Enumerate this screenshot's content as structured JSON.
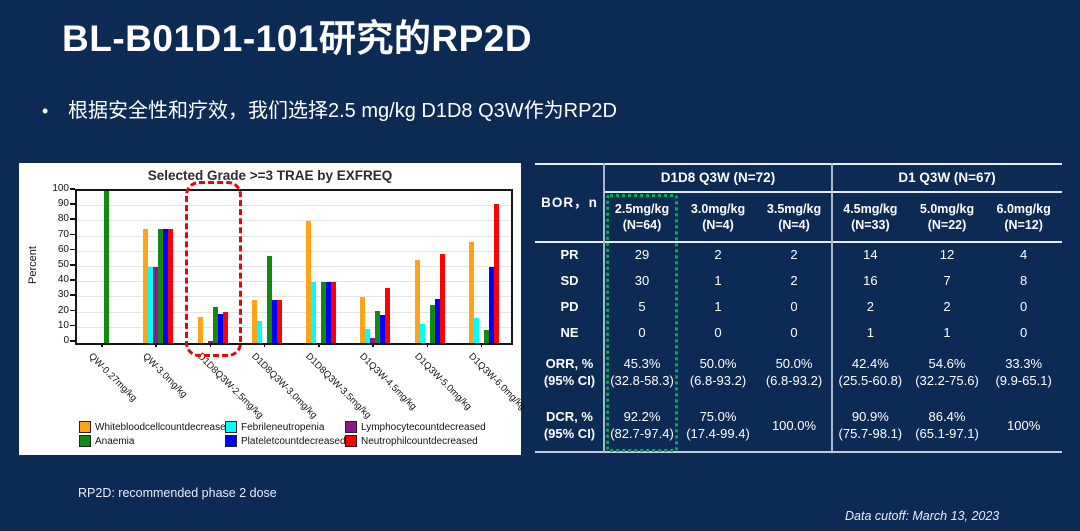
{
  "slide": {
    "title": "BL-B01D1-101研究的RP2D",
    "bullet_marker": "•",
    "bullet": "根据安全性和疗效，我们选择2.5 mg/kg D1D8 Q3W作为RP2D",
    "background_color": "#0C2B54"
  },
  "chart_data": {
    "type": "bar",
    "title": "Selected Grade >=3 TRAE by EXFREQ",
    "xlabel": "",
    "ylabel": "Percent",
    "ylim": [
      0,
      100
    ],
    "ytick_step": 10,
    "grid": true,
    "legend_position": "bottom",
    "categories": [
      "QW-0.27mg/kg",
      "QW-3.0mg/kg",
      "D1D8Q3W-2.5mg/kg",
      "D1D8Q3W-3.0mg/kg",
      "D1D8Q3W-3.5mg/kg",
      "D1Q3W-4.5mg/kg",
      "D1Q3W-5.0mg/kg",
      "D1Q3W-6.0mg/kg"
    ],
    "series": [
      {
        "name": "Whitebloodcellcountdecreased",
        "color": "#FFA319",
        "values": [
          0,
          75,
          17.2,
          28.6,
          80,
          30.3,
          54.5,
          66.7
        ]
      },
      {
        "name": "Febrileneutropenia",
        "color": "#00FFFF",
        "values": [
          0,
          50,
          0,
          14.3,
          40,
          9.1,
          12.5,
          16.7
        ]
      },
      {
        "name": "Lymphocytecountdecreased",
        "color": "#8B1A8B",
        "values": [
          0,
          50,
          1.6,
          0,
          0,
          3,
          0,
          0
        ]
      },
      {
        "name": "Anaemia",
        "color": "#128A12",
        "values": [
          100,
          75,
          23.4,
          57.1,
          40,
          21.2,
          25,
          8.3
        ]
      },
      {
        "name": "Plateletcountdecreased",
        "color": "#0000FF",
        "values": [
          0,
          75,
          18.8,
          28.6,
          40,
          18.2,
          29.2,
          50
        ]
      },
      {
        "name": "Neutrophilcountdecreased",
        "color": "#FF0000",
        "values": [
          0,
          75,
          20.3,
          28.6,
          40,
          36.4,
          58.3,
          91.7
        ]
      }
    ],
    "highlight": {
      "category": "D1D8Q3W-2.5mg/kg",
      "style": "red-dashed-box",
      "color": "#F10000"
    }
  },
  "table": {
    "corner_label": "BOR，n",
    "groups": [
      {
        "label": "D1D8 Q3W (N=72)",
        "span": 3
      },
      {
        "label": "D1 Q3W (N=67)",
        "span": 3
      }
    ],
    "columns": [
      "2.5mg/kg\n(N=64)",
      "3.0mg/kg\n(N=4)",
      "3.5mg/kg\n(N=4)",
      "4.5mg/kg\n(N=33)",
      "5.0mg/kg\n(N=22)",
      "6.0mg/kg\n(N=12)"
    ],
    "highlight_column_index": 0,
    "highlight_color": "#00B050",
    "rows": [
      {
        "label": "PR",
        "values": [
          "29",
          "2",
          "2",
          "14",
          "12",
          "4"
        ]
      },
      {
        "label": "SD",
        "values": [
          "30",
          "1",
          "2",
          "16",
          "7",
          "8"
        ]
      },
      {
        "label": "PD",
        "values": [
          "5",
          "1",
          "0",
          "2",
          "2",
          "0"
        ]
      },
      {
        "label": "NE",
        "values": [
          "0",
          "0",
          "0",
          "1",
          "1",
          "0"
        ]
      },
      {
        "label": "ORR, %\n(95% CI)",
        "values": [
          "45.3%\n(32.8-58.3)",
          "50.0%\n(6.8-93.2)",
          "50.0%\n(6.8-93.2)",
          "42.4%\n(25.5-60.8)",
          "54.6%\n(32.2-75.6)",
          "33.3%\n(9.9-65.1)"
        ]
      },
      {
        "label": "DCR, %\n(95% CI)",
        "values": [
          "92.2%\n(82.7-97.4)",
          "75.0%\n(17.4-99.4)",
          "100.0%",
          "90.9%\n(75.7-98.1)",
          "86.4%\n(65.1-97.1)",
          "100%"
        ]
      }
    ]
  },
  "footnotes": {
    "rp2d": "RP2D:  recommended phase 2 dose",
    "cutoff": "Data cutoff: March 13, 2023"
  }
}
